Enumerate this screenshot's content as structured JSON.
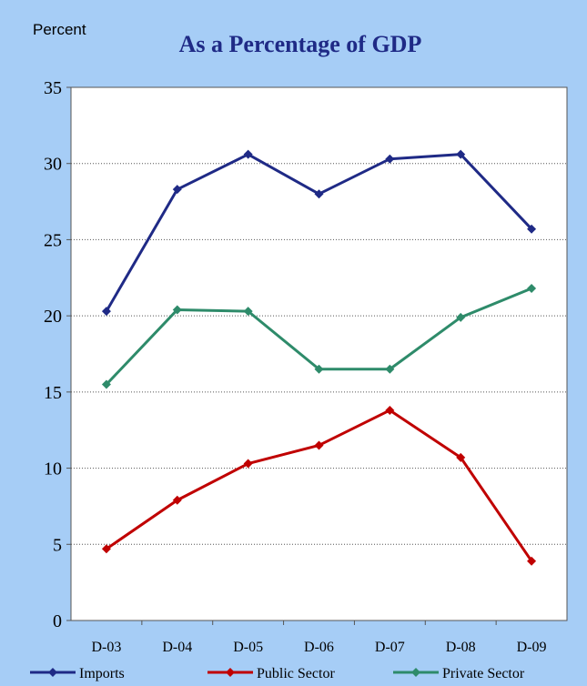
{
  "chart_data": {
    "type": "line",
    "title": "As a Percentage of GDP",
    "ylabel": "Percent",
    "categories": [
      "D-03",
      "D-04",
      "D-05",
      "D-06",
      "D-07",
      "D-08",
      "D-09"
    ],
    "ylim": [
      0,
      35
    ],
    "yticks": [
      0,
      5,
      10,
      15,
      20,
      25,
      30,
      35
    ],
    "grid": true,
    "legend_position": "bottom",
    "series": [
      {
        "name": "Imports",
        "color": "#1f2a86",
        "values": [
          20.3,
          28.3,
          30.6,
          28.0,
          30.3,
          30.6,
          25.7
        ]
      },
      {
        "name": "Public Sector",
        "color": "#c00000",
        "values": [
          4.7,
          7.9,
          10.3,
          11.5,
          13.8,
          10.7,
          3.9
        ]
      },
      {
        "name": "Private Sector",
        "color": "#2e8b6a",
        "values": [
          15.5,
          20.4,
          20.3,
          16.5,
          16.5,
          19.9,
          21.8
        ]
      }
    ]
  }
}
